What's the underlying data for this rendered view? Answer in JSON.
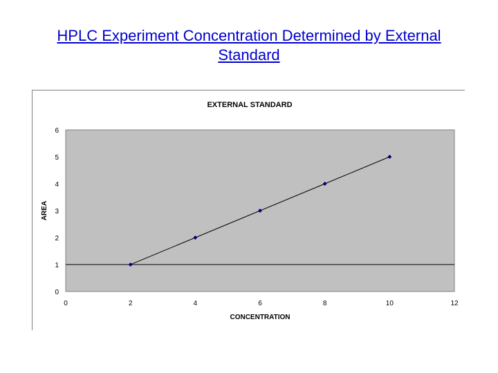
{
  "slide": {
    "title": "HPLC Experiment Concentration Determined by External Standard"
  },
  "chart_data": {
    "type": "scatter",
    "title": "EXTERNAL STANDARD",
    "xlabel": "CONCENTRATION",
    "ylabel": "AREA",
    "xlim": [
      0,
      12
    ],
    "ylim": [
      0,
      6
    ],
    "xticks": [
      0,
      2,
      4,
      6,
      8,
      10,
      12
    ],
    "yticks": [
      0,
      1,
      2,
      3,
      4,
      5,
      6
    ],
    "grid": false,
    "legend": "none",
    "plot_background": "#c0c0c0",
    "marker_color": "#000080",
    "line_color": "#000000",
    "series": [
      {
        "x": [
          2,
          4,
          6,
          8,
          10
        ],
        "y": [
          1,
          2,
          3,
          4,
          5
        ],
        "trendline": "linear"
      }
    ]
  }
}
